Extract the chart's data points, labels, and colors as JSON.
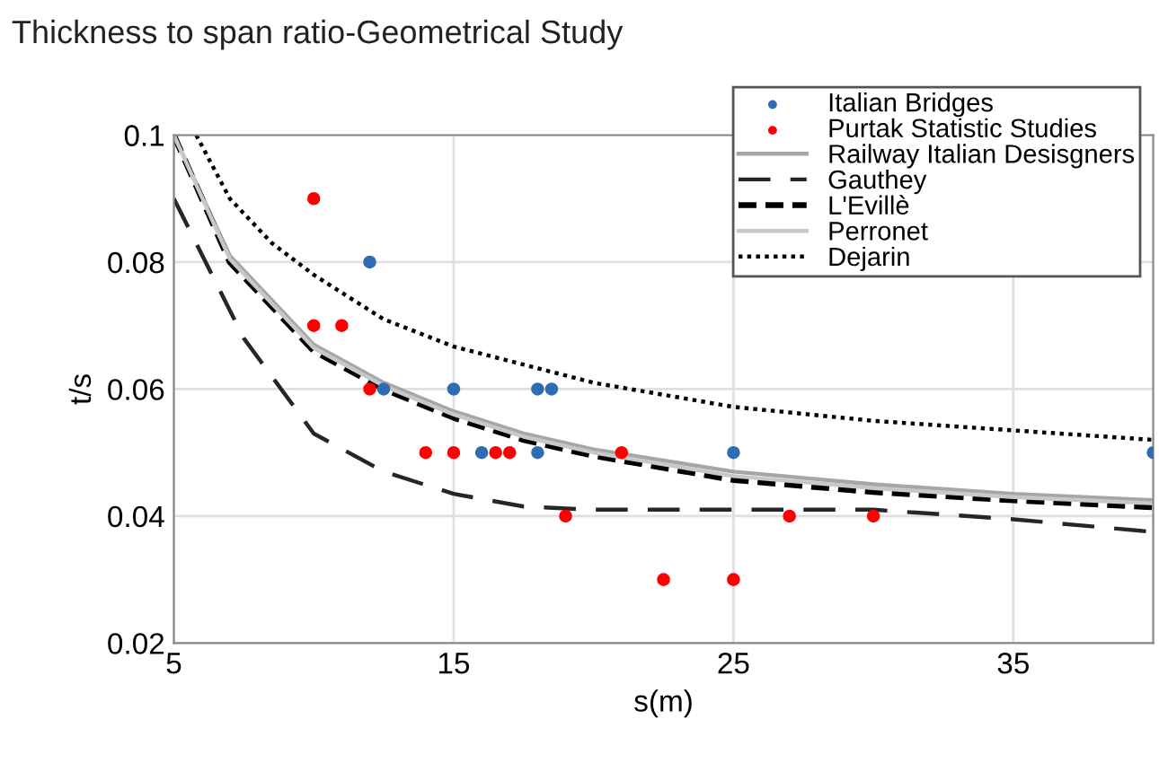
{
  "chart_data": {
    "type": "scatter",
    "title": "Thickness to span ratio-Geometrical Study",
    "xlabel": "s(m)",
    "ylabel": "t/s",
    "xlim": [
      5,
      40
    ],
    "xticks": [
      5,
      15,
      25,
      35
    ],
    "ylim": [
      0.02,
      0.1
    ],
    "yticks": [
      0.02,
      0.04,
      0.06,
      0.08,
      0.1
    ],
    "grid": true,
    "legend": "top right",
    "series": [
      {
        "name": "Italian Bridges",
        "marker": "circle",
        "color": "#2e6db4",
        "x": [
          12,
          12.5,
          15,
          18,
          18.5,
          16,
          18,
          25,
          40
        ],
        "values": [
          0.08,
          0.06,
          0.06,
          0.06,
          0.06,
          0.05,
          0.05,
          0.05,
          0.05
        ]
      },
      {
        "name": "Purtak Statistic Studies",
        "marker": "circle",
        "color": "#ff0000",
        "x": [
          10,
          10,
          11,
          12,
          14,
          15,
          16.5,
          17,
          19,
          21,
          27,
          30,
          22.5,
          25
        ],
        "values": [
          0.09,
          0.07,
          0.07,
          0.06,
          0.05,
          0.05,
          0.05,
          0.05,
          0.04,
          0.05,
          0.04,
          0.04,
          0.03,
          0.03
        ]
      },
      {
        "name": "Railway Italian Desisgners",
        "type": "line",
        "line_style": "solid",
        "color": "#a6a6a6",
        "x": [
          5,
          7,
          10,
          12.5,
          15,
          17.5,
          20,
          25,
          30,
          35,
          40
        ],
        "values": [
          0.1,
          0.081,
          0.067,
          0.061,
          0.0565,
          0.053,
          0.0505,
          0.047,
          0.045,
          0.0435,
          0.0425
        ]
      },
      {
        "name": "Gauthey",
        "type": "line",
        "line_style": "longdash",
        "color": "#262626",
        "x": [
          5,
          7.5,
          10,
          12.5,
          15,
          17.5,
          20,
          25,
          30,
          35,
          40
        ],
        "values": [
          0.09,
          0.068,
          0.053,
          0.047,
          0.0435,
          0.0415,
          0.041,
          0.041,
          0.041,
          0.0395,
          0.0375
        ]
      },
      {
        "name": "L'Evillè",
        "type": "line",
        "line_style": "dashed",
        "color": "#000000",
        "x": [
          5,
          7,
          10,
          12.5,
          15,
          17.5,
          20,
          25,
          30,
          35,
          40
        ],
        "values": [
          0.1,
          0.08,
          0.066,
          0.06,
          0.0555,
          0.052,
          0.0495,
          0.0457,
          0.0438,
          0.0425,
          0.0414
        ]
      },
      {
        "name": "Perronet",
        "type": "line",
        "line_style": "solid",
        "color": "#c8c8c8",
        "x": [
          5,
          7,
          10,
          12.5,
          15,
          17.5,
          20,
          25,
          30,
          35,
          40
        ],
        "values": [
          0.1,
          0.0805,
          0.0665,
          0.0605,
          0.056,
          0.0525,
          0.05,
          0.0463,
          0.0444,
          0.043,
          0.042
        ]
      },
      {
        "name": "Dejarin",
        "type": "line",
        "line_style": "dotted",
        "color": "#000000",
        "x": [
          5.8,
          7,
          8.5,
          10,
          12.5,
          15,
          20,
          25,
          30,
          35,
          40
        ],
        "values": [
          0.1,
          0.09,
          0.083,
          0.078,
          0.071,
          0.0667,
          0.061,
          0.0572,
          0.055,
          0.0535,
          0.052
        ]
      }
    ]
  }
}
